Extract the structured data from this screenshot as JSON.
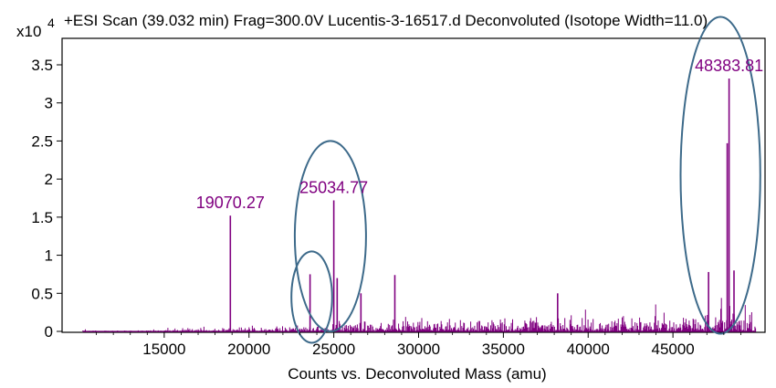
{
  "chart_data": {
    "type": "line",
    "title": "+ESI Scan (39.032 min) Frag=300.0V Lucentis-3-16517.d  Deconvoluted (Isotope Width=11.0)",
    "y_multiplier": "x10",
    "y_exponent": "4",
    "xlabel": "Counts vs. Deconvoluted Mass (amu)",
    "ylabel": "",
    "xlim": [
      10000,
      50000
    ],
    "ylim": [
      0,
      3.9
    ],
    "x_ticks": [
      "15000",
      "20000",
      "25000",
      "30000",
      "35000",
      "40000",
      "45000"
    ],
    "y_ticks": [
      "0",
      "0.5",
      "1",
      "1.5",
      "2",
      "2.5",
      "3",
      "3.5"
    ],
    "y_tick_values": [
      0,
      0.5,
      1,
      1.5,
      2,
      2.5,
      3,
      3.5
    ],
    "x_tick_values": [
      15000,
      20000,
      25000,
      30000,
      35000,
      40000,
      45000
    ],
    "grid": false,
    "series_color": "#800080",
    "peaks": [
      {
        "x": 18900,
        "y": 1.52
      },
      {
        "x": 23600,
        "y": 0.75
      },
      {
        "x": 25000,
        "y": 1.72
      },
      {
        "x": 25200,
        "y": 0.7
      },
      {
        "x": 26600,
        "y": 0.5
      },
      {
        "x": 28600,
        "y": 0.74
      },
      {
        "x": 38200,
        "y": 0.5
      },
      {
        "x": 47100,
        "y": 0.78
      },
      {
        "x": 48200,
        "y": 2.47
      },
      {
        "x": 48310,
        "y": 3.32
      },
      {
        "x": 48600,
        "y": 0.8
      }
    ],
    "annotations": [
      {
        "text": "19070.27",
        "x": 18900,
        "y": 1.52
      },
      {
        "text": "25034.77",
        "x": 25000,
        "y": 1.72
      },
      {
        "text": "48383.81",
        "x": 48310,
        "y": 3.32
      }
    ],
    "highlight_ellipses": [
      {
        "cx": 24800,
        "cy": 1.25,
        "rx": 2100,
        "ry": 1.25
      },
      {
        "cx": 23700,
        "cy": 0.45,
        "rx": 1200,
        "ry": 0.6
      },
      {
        "cx": 47800,
        "cy": 2.05,
        "rx": 2350,
        "ry": 2.08
      }
    ],
    "ellipse_color": "#3d6a8a"
  }
}
